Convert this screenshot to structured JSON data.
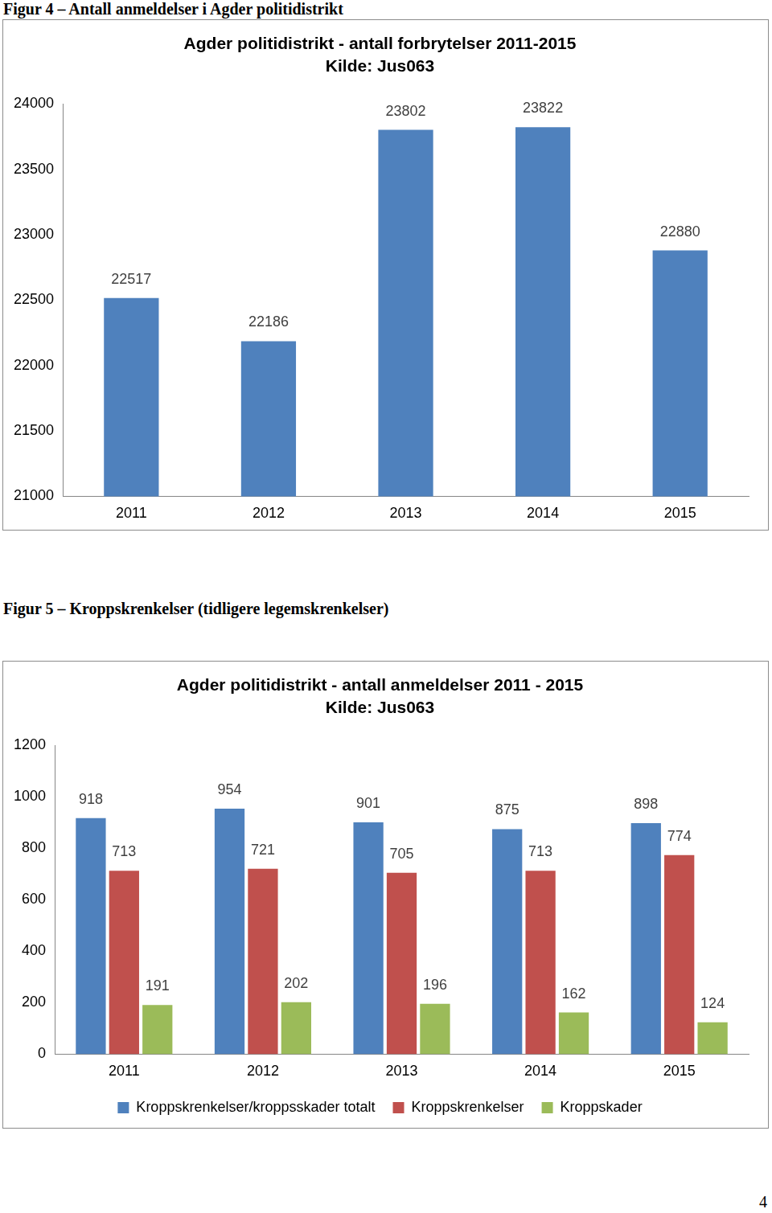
{
  "captions": [
    "Figur 4 – Antall anmeldelser i Agder politidistrikt",
    "Figur 5 – Kroppskrenkelser (tidligere legemskrenkelser)"
  ],
  "page_number": 4,
  "chart_data": [
    {
      "type": "bar",
      "title": "Agder politidistrikt - antall forbrytelser 2011-2015",
      "subtitle": "Kilde: Jus063",
      "categories": [
        "2011",
        "2012",
        "2013",
        "2014",
        "2015"
      ],
      "values": [
        22517,
        22186,
        23802,
        23822,
        22880
      ],
      "color": "#4f81bd",
      "ylim": [
        21000,
        24000
      ],
      "yticks": [
        21000,
        21500,
        22000,
        22500,
        23000,
        23500,
        24000
      ],
      "grid": false,
      "data_labels": true
    },
    {
      "type": "bar",
      "title": "Agder politidistrikt - antall anmeldelser 2011 - 2015",
      "subtitle": "Kilde: Jus063",
      "categories": [
        "2011",
        "2012",
        "2013",
        "2014",
        "2015"
      ],
      "series": [
        {
          "name": "Kroppskrenkelser/kroppsskader totalt",
          "color": "#4f81bd",
          "values": [
            918,
            954,
            901,
            875,
            898
          ]
        },
        {
          "name": "Kroppskrenkelser",
          "color": "#c0504d",
          "values": [
            713,
            721,
            705,
            713,
            774
          ]
        },
        {
          "name": "Kroppskader",
          "color": "#9bbb59",
          "values": [
            191,
            202,
            196,
            162,
            124
          ]
        }
      ],
      "ylim": [
        0,
        1200
      ],
      "yticks": [
        0,
        200,
        400,
        600,
        800,
        1000,
        1200
      ],
      "grid": false,
      "legend": "bottom",
      "data_labels": true
    }
  ]
}
